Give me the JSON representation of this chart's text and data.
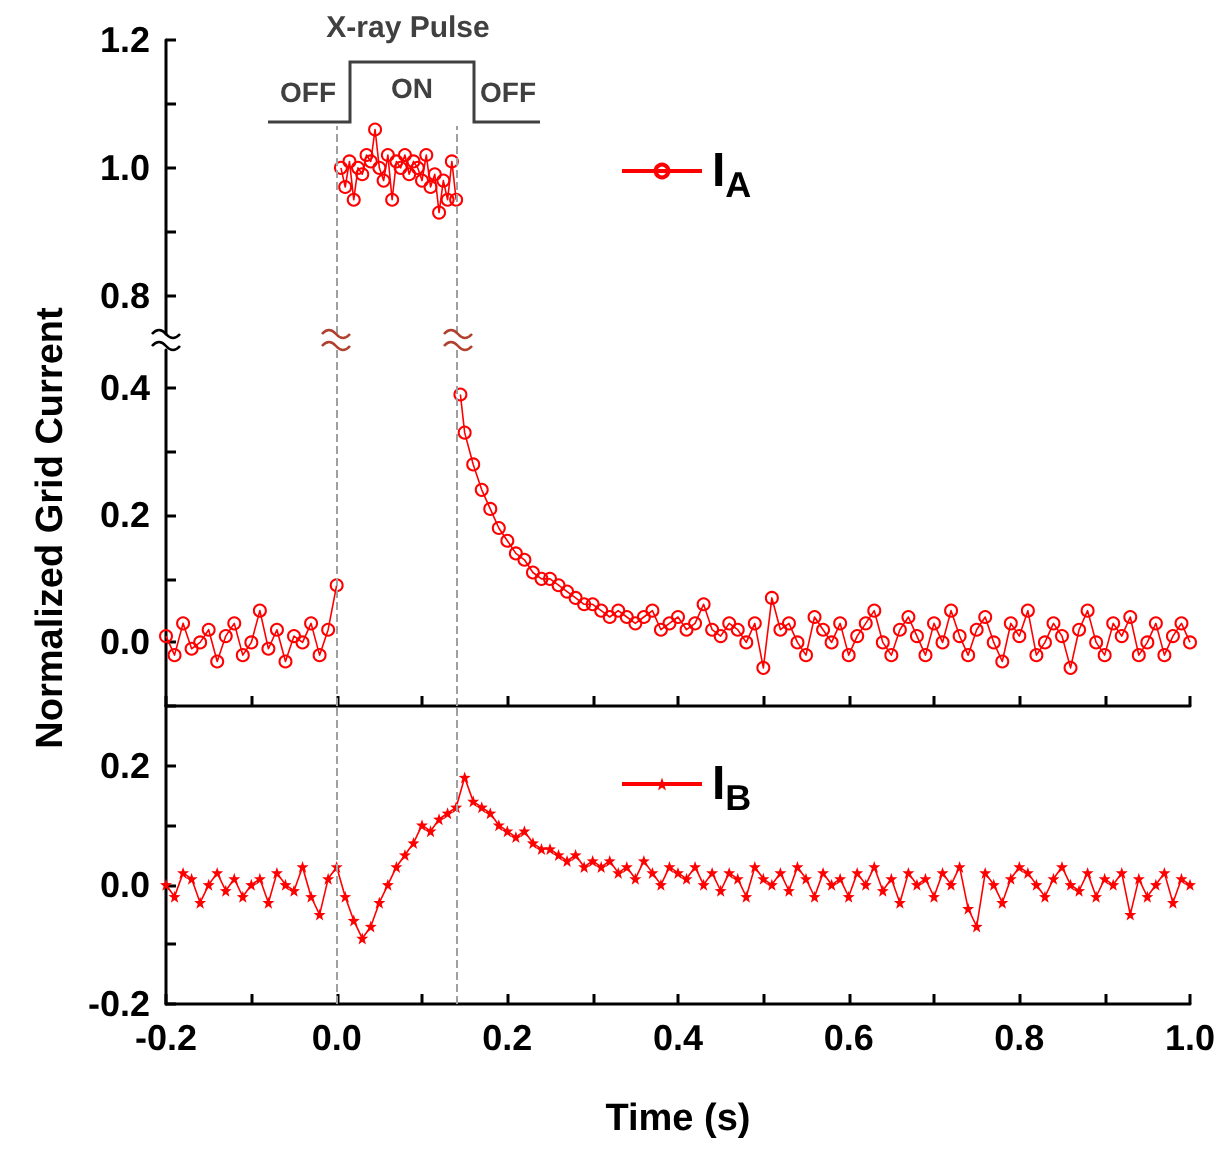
{
  "chart_data": [
    {
      "type": "line",
      "annotations": [
        "X-ray Pulse",
        "OFF",
        "ON",
        "OFF"
      ],
      "legend": "right",
      "marker": "circle",
      "tick_labels": "y",
      "xlim": [
        -0.2,
        1.0
      ],
      "ylim": [
        0.74,
        1.2
      ],
      "yticks": [
        0.8,
        {
          "value": 0.9,
          "label": null
        },
        {
          "value": 1,
          "label": "1.0"
        },
        {
          "value": 1.1,
          "label": null
        },
        1.2
      ],
      "ref_lines": [
        {
          "axis": "x",
          "value": 0,
          "color": "#a0a0a0",
          "line_style": "dashed"
        },
        {
          "axis": "x",
          "value": 0.14,
          "color": "#a0a0a0",
          "line_style": "dashed"
        }
      ],
      "series": [
        {
          "name": "I$_{A}$",
          "color": "#ff0000",
          "x": [
            0.005,
            0.01,
            0.015,
            0.02,
            0.025,
            0.03,
            0.035,
            0.04,
            0.045,
            0.05,
            0.055,
            0.06,
            0.065,
            0.07,
            0.075,
            0.08,
            0.085,
            0.09,
            0.095,
            0.1,
            0.105,
            0.11,
            0.115,
            0.12,
            0.125,
            0.13,
            0.135,
            0.14
          ],
          "values": [
            1.0,
            0.97,
            1.01,
            0.95,
            1.0,
            0.99,
            1.02,
            1.01,
            1.06,
            1.0,
            0.98,
            1.02,
            0.95,
            1.01,
            1.0,
            1.02,
            0.99,
            1.01,
            1.0,
            0.98,
            1.02,
            0.97,
            0.99,
            0.93,
            0.98,
            0.95,
            1.01,
            0.95
          ]
        }
      ]
    },
    {
      "type": "line",
      "ylabel": "Normalized Grid Current",
      "marker": "circle",
      "tick_labels": "y",
      "xlim": [
        -0.2,
        1.0
      ],
      "xticks": [
        {
          "value": -0.2,
          "label": null
        },
        {
          "value": -0.1,
          "label": null
        },
        {
          "value": 0,
          "label": null
        },
        {
          "value": 0.1,
          "label": null
        },
        {
          "value": 0.2,
          "label": null
        },
        {
          "value": 0.3,
          "label": null
        },
        {
          "value": 0.4,
          "label": null
        },
        {
          "value": 0.5,
          "label": null
        },
        {
          "value": 0.6,
          "label": null
        },
        {
          "value": 0.7,
          "label": null
        },
        {
          "value": 0.8,
          "label": null
        },
        {
          "value": 0.9,
          "label": null
        },
        {
          "value": 1,
          "label": null
        }
      ],
      "ylim": [
        -0.1,
        0.46
      ],
      "yticks": [
        {
          "value": -0.1,
          "label": null
        },
        {
          "value": 0,
          "label": "0.0"
        },
        {
          "value": 0.1,
          "label": null
        },
        0.2,
        {
          "value": 0.3,
          "label": null
        },
        0.4
      ],
      "ref_lines": [
        {
          "axis": "x",
          "value": 0,
          "color": "#a0a0a0",
          "line_style": "dashed"
        },
        {
          "axis": "x",
          "value": 0.14,
          "color": "#a0a0a0",
          "line_style": "dashed"
        }
      ],
      "series": [
        {
          "color": "#ff0000",
          "x": [
            -0.2,
            -0.19,
            -0.18,
            -0.17,
            -0.16,
            -0.15,
            -0.14,
            -0.13,
            -0.12,
            -0.11,
            -0.1,
            -0.09,
            -0.08,
            -0.07,
            -0.06,
            -0.05,
            -0.04,
            -0.03,
            -0.02,
            -0.01,
            0.0,
            0.07,
            0.145,
            0.15,
            0.16,
            0.17,
            0.18,
            0.19,
            0.2,
            0.21,
            0.22,
            0.23,
            0.24,
            0.25,
            0.26,
            0.27,
            0.28,
            0.29,
            0.3,
            0.31,
            0.32,
            0.33,
            0.34,
            0.35,
            0.36,
            0.37,
            0.38,
            0.39,
            0.4,
            0.41,
            0.42,
            0.43,
            0.44,
            0.45,
            0.46,
            0.47,
            0.48,
            0.49,
            0.5,
            0.51,
            0.52,
            0.53,
            0.54,
            0.55,
            0.56,
            0.57,
            0.58,
            0.59,
            0.6,
            0.61,
            0.62,
            0.63,
            0.64,
            0.65,
            0.66,
            0.67,
            0.68,
            0.69,
            0.7,
            0.71,
            0.72,
            0.73,
            0.74,
            0.75,
            0.76,
            0.77,
            0.78,
            0.79,
            0.8,
            0.81,
            0.82,
            0.83,
            0.84,
            0.85,
            0.86,
            0.87,
            0.88,
            0.89,
            0.9,
            0.91,
            0.92,
            0.93,
            0.94,
            0.95,
            0.96,
            0.97,
            0.98,
            0.99,
            1.0
          ],
          "values": [
            0.01,
            -0.02,
            0.03,
            -0.01,
            0.0,
            0.02,
            -0.03,
            0.01,
            0.03,
            -0.02,
            0.0,
            0.05,
            -0.01,
            0.02,
            -0.03,
            0.01,
            0.0,
            0.03,
            -0.02,
            0.02,
            0.09,
            null,
            0.39,
            0.33,
            0.28,
            0.24,
            0.21,
            0.18,
            0.16,
            0.14,
            0.13,
            0.11,
            0.1,
            0.1,
            0.09,
            0.08,
            0.07,
            0.06,
            0.06,
            0.05,
            0.04,
            0.05,
            0.04,
            0.03,
            0.04,
            0.05,
            0.02,
            0.03,
            0.04,
            0.02,
            0.03,
            0.06,
            0.02,
            0.01,
            0.03,
            0.02,
            0.0,
            0.03,
            -0.04,
            0.07,
            0.02,
            0.03,
            0.0,
            -0.02,
            0.04,
            0.02,
            0.0,
            0.03,
            -0.02,
            0.01,
            0.03,
            0.05,
            0.0,
            -0.02,
            0.02,
            0.04,
            0.01,
            -0.02,
            0.03,
            0.0,
            0.05,
            0.01,
            -0.02,
            0.02,
            0.04,
            0.0,
            -0.03,
            0.03,
            0.01,
            0.05,
            -0.02,
            0.0,
            0.03,
            0.01,
            -0.04,
            0.02,
            0.05,
            0.0,
            -0.02,
            0.03,
            0.01,
            0.04,
            -0.02,
            0.0,
            0.03,
            -0.02,
            0.01,
            0.03,
            0.0
          ]
        }
      ]
    },
    {
      "type": "line",
      "xlabel": "Time (s)",
      "legend": "top right",
      "marker": "star",
      "xlim": [
        -0.2,
        1.0
      ],
      "xticks": [
        -0.2,
        {
          "value": -0.1,
          "label": null
        },
        {
          "value": 0,
          "label": "0.0"
        },
        {
          "value": 0.1,
          "label": null
        },
        0.2,
        {
          "value": 0.3,
          "label": null
        },
        0.4,
        {
          "value": 0.5,
          "label": null
        },
        0.6,
        {
          "value": 0.7,
          "label": null
        },
        0.8,
        {
          "value": 0.9,
          "label": null
        },
        {
          "value": 1,
          "label": "1.0"
        }
      ],
      "ylim": [
        -0.2,
        0.3
      ],
      "yticks": [
        -0.2,
        {
          "value": -0.1,
          "label": null
        },
        {
          "value": 0,
          "label": "0.0"
        },
        {
          "value": 0.1,
          "label": null
        },
        0.2
      ],
      "ref_lines": [
        {
          "axis": "x",
          "value": 0,
          "color": "#a0a0a0",
          "line_style": "dashed"
        },
        {
          "axis": "x",
          "value": 0.14,
          "color": "#a0a0a0",
          "line_style": "dashed"
        }
      ],
      "series": [
        {
          "name": "I$_{B}$",
          "color": "#ff0000",
          "x": [
            -0.2,
            -0.19,
            -0.18,
            -0.17,
            -0.16,
            -0.15,
            -0.14,
            -0.13,
            -0.12,
            -0.11,
            -0.1,
            -0.09,
            -0.08,
            -0.07,
            -0.06,
            -0.05,
            -0.04,
            -0.03,
            -0.02,
            -0.01,
            0.0,
            0.01,
            0.02,
            0.03,
            0.04,
            0.05,
            0.06,
            0.07,
            0.08,
            0.09,
            0.1,
            0.11,
            0.12,
            0.13,
            0.14,
            0.15,
            0.16,
            0.17,
            0.18,
            0.19,
            0.2,
            0.21,
            0.22,
            0.23,
            0.24,
            0.25,
            0.26,
            0.27,
            0.28,
            0.29,
            0.3,
            0.31,
            0.32,
            0.33,
            0.34,
            0.35,
            0.36,
            0.37,
            0.38,
            0.39,
            0.4,
            0.41,
            0.42,
            0.43,
            0.44,
            0.45,
            0.46,
            0.47,
            0.48,
            0.49,
            0.5,
            0.51,
            0.52,
            0.53,
            0.54,
            0.55,
            0.56,
            0.57,
            0.58,
            0.59,
            0.6,
            0.61,
            0.62,
            0.63,
            0.64,
            0.65,
            0.66,
            0.67,
            0.68,
            0.69,
            0.7,
            0.71,
            0.72,
            0.73,
            0.74,
            0.75,
            0.76,
            0.77,
            0.78,
            0.79,
            0.8,
            0.81,
            0.82,
            0.83,
            0.84,
            0.85,
            0.86,
            0.87,
            0.88,
            0.89,
            0.9,
            0.91,
            0.92,
            0.93,
            0.94,
            0.95,
            0.96,
            0.97,
            0.98,
            0.99,
            1.0
          ],
          "values": [
            0.0,
            -0.02,
            0.02,
            0.01,
            -0.03,
            0.0,
            0.02,
            -0.01,
            0.01,
            -0.02,
            0.0,
            0.01,
            -0.03,
            0.02,
            0.0,
            -0.01,
            0.03,
            -0.02,
            -0.05,
            0.01,
            0.03,
            -0.02,
            -0.06,
            -0.09,
            -0.07,
            -0.03,
            0.0,
            0.03,
            0.05,
            0.07,
            0.1,
            0.09,
            0.11,
            0.12,
            0.13,
            0.18,
            0.14,
            0.13,
            0.12,
            0.1,
            0.09,
            0.08,
            0.09,
            0.07,
            0.06,
            0.06,
            0.05,
            0.04,
            0.05,
            0.03,
            0.04,
            0.03,
            0.04,
            0.02,
            0.03,
            0.01,
            0.04,
            0.02,
            0.0,
            0.03,
            0.02,
            0.01,
            0.03,
            0.0,
            0.02,
            -0.01,
            0.02,
            0.01,
            -0.02,
            0.03,
            0.01,
            0.0,
            0.02,
            -0.01,
            0.03,
            0.01,
            -0.02,
            0.02,
            0.0,
            0.01,
            -0.02,
            0.02,
            0.0,
            0.03,
            -0.01,
            0.01,
            -0.03,
            0.02,
            0.0,
            0.01,
            -0.02,
            0.02,
            0.0,
            0.03,
            -0.04,
            -0.07,
            0.02,
            0.0,
            -0.03,
            0.01,
            0.03,
            0.02,
            0.0,
            -0.02,
            0.01,
            0.03,
            0.0,
            -0.01,
            0.02,
            -0.02,
            0.01,
            0.0,
            0.02,
            -0.05,
            0.01,
            -0.02,
            0.0,
            0.02,
            -0.03,
            0.01,
            0.0
          ]
        }
      ]
    }
  ]
}
